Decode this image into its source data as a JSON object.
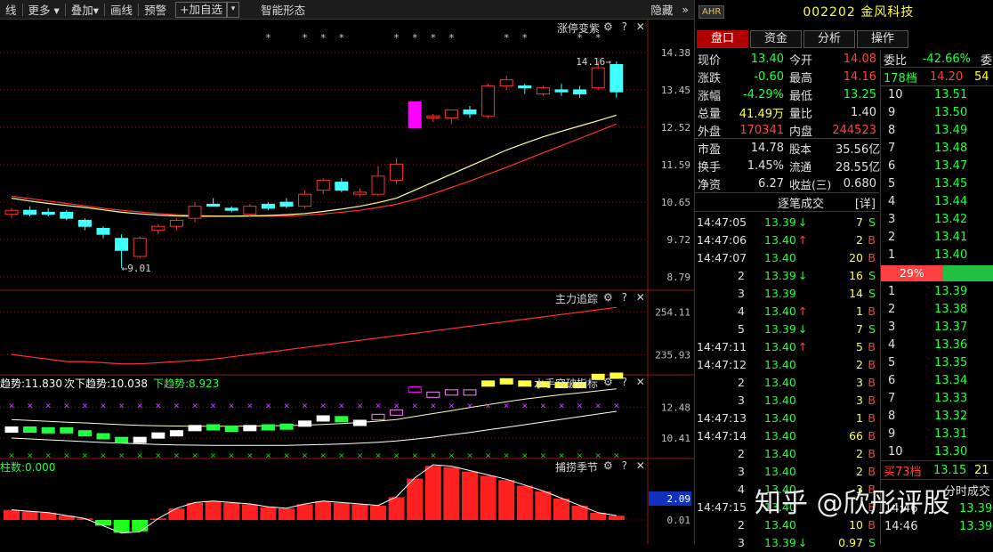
{
  "topbar": {
    "items": [
      "线",
      "更多 ▾",
      "叠加▾",
      "画线",
      "预警"
    ],
    "add_label": "+加自选",
    "add_dd": "▾",
    "smart": "智能形态",
    "hide": "隐藏",
    "collapse": "»"
  },
  "panels": {
    "p1": {
      "title": "涨停变紫",
      "ctrl": "⚙ ? ✕",
      "ticks": [
        "14.38",
        "13.45",
        "12.52",
        "11.59",
        "10.65",
        "9.72",
        "8.79"
      ],
      "max_label": "14.16",
      "min_label": "9.01"
    },
    "p2": {
      "title": "主力追踪",
      "ctrl": "⚙ ? ✕",
      "ticks": [
        "254.11",
        "235.93"
      ]
    },
    "p3": {
      "title": "水手突破指标",
      "ctrl": "⚙ ? ✕",
      "ticks": [
        "12.48",
        "10.41"
      ],
      "leg1": "趋势:11.830",
      "leg2": "次下趋势:10.038",
      "leg3": "下趋势:8.923"
    },
    "p4": {
      "title": "捕捞季节",
      "ctrl": "⚙ ? ✕",
      "ticks": [
        "2.09",
        "0.01"
      ],
      "leg1": "柱数:0.000"
    }
  },
  "colors": {
    "up": "#ff3030",
    "down": "#40ffff",
    "limit": "#ff00ff",
    "ma_yellow": "#ffffa0",
    "ma_red": "#ff3030"
  },
  "chart_data": {
    "type": "candlestick",
    "ohlc": [
      [
        10.35,
        10.5,
        10.25,
        10.45
      ],
      [
        10.45,
        10.55,
        10.3,
        10.35
      ],
      [
        10.4,
        10.5,
        10.3,
        10.35
      ],
      [
        10.4,
        10.45,
        10.2,
        10.25
      ],
      [
        10.2,
        10.25,
        9.95,
        10.05
      ],
      [
        10.0,
        10.05,
        9.75,
        9.85
      ],
      [
        9.75,
        9.85,
        9.01,
        9.45
      ],
      [
        9.3,
        9.8,
        9.25,
        9.75
      ],
      [
        9.95,
        10.1,
        9.85,
        10.05
      ],
      [
        10.05,
        10.25,
        9.95,
        10.2
      ],
      [
        10.25,
        10.65,
        10.15,
        10.55
      ],
      [
        10.6,
        10.75,
        10.55,
        10.55
      ],
      [
        10.5,
        10.55,
        10.4,
        10.45
      ],
      [
        10.35,
        10.6,
        10.3,
        10.55
      ],
      [
        10.6,
        10.65,
        10.45,
        10.5
      ],
      [
        10.65,
        10.75,
        10.5,
        10.55
      ],
      [
        10.55,
        10.95,
        10.5,
        10.85
      ],
      [
        10.95,
        11.25,
        10.85,
        11.2
      ],
      [
        11.15,
        11.25,
        10.9,
        10.95
      ],
      [
        10.85,
        11.0,
        10.8,
        10.9
      ],
      [
        10.85,
        11.55,
        10.8,
        11.3
      ],
      [
        11.2,
        11.75,
        11.1,
        11.6
      ],
      [
        12.5,
        13.15,
        12.5,
        13.15
      ],
      [
        12.75,
        12.85,
        12.65,
        12.8
      ],
      [
        12.75,
        12.95,
        12.6,
        12.95
      ],
      [
        12.95,
        13.05,
        12.75,
        12.85
      ],
      [
        12.8,
        13.6,
        12.75,
        13.55
      ],
      [
        13.55,
        13.8,
        13.45,
        13.7
      ],
      [
        13.55,
        13.6,
        13.35,
        13.5
      ],
      [
        13.35,
        13.55,
        13.3,
        13.5
      ],
      [
        13.45,
        13.6,
        13.3,
        13.4
      ],
      [
        13.45,
        13.55,
        13.25,
        13.35
      ],
      [
        13.5,
        14.16,
        13.45,
        14.0
      ],
      [
        14.08,
        14.16,
        13.25,
        13.4
      ]
    ],
    "ma_yellow": [
      10.75,
      10.68,
      10.62,
      10.57,
      10.52,
      10.46,
      10.4,
      10.36,
      10.33,
      10.31,
      10.3,
      10.3,
      10.3,
      10.31,
      10.32,
      10.34,
      10.37,
      10.42,
      10.48,
      10.55,
      10.64,
      10.75,
      10.95,
      11.15,
      11.35,
      11.55,
      11.75,
      11.95,
      12.12,
      12.28,
      12.42,
      12.55,
      12.68,
      12.82
    ],
    "ma_red": [
      10.8,
      10.74,
      10.68,
      10.62,
      10.56,
      10.5,
      10.45,
      10.41,
      10.37,
      10.34,
      10.32,
      10.31,
      10.3,
      10.3,
      10.3,
      10.31,
      10.33,
      10.36,
      10.4,
      10.45,
      10.52,
      10.6,
      10.72,
      10.86,
      11.02,
      11.18,
      11.35,
      11.52,
      11.7,
      11.88,
      12.06,
      12.24,
      12.42,
      12.6
    ],
    "stars": [
      14,
      16,
      17,
      18,
      21,
      22,
      23,
      24,
      27,
      28,
      31,
      32
    ],
    "limit_index": [
      22
    ],
    "zlzz": [
      236,
      235,
      234,
      233,
      233,
      232.5,
      232,
      232,
      232.5,
      233,
      233.5,
      234,
      235,
      236,
      237,
      238,
      239,
      240,
      241,
      242,
      243,
      244,
      245,
      246,
      247,
      248,
      249,
      250,
      251,
      252,
      253,
      254,
      255,
      256
    ],
    "season": [
      0.35,
      0.3,
      0.25,
      0.15,
      0.05,
      -0.2,
      -0.45,
      -0.4,
      0.05,
      0.4,
      0.6,
      0.65,
      0.6,
      0.55,
      0.45,
      0.4,
      0.55,
      0.65,
      0.6,
      0.55,
      0.5,
      0.8,
      1.45,
      1.9,
      1.85,
      1.7,
      1.55,
      1.4,
      1.2,
      1.0,
      0.75,
      0.5,
      0.25,
      0.15
    ]
  },
  "rp": {
    "tag": "AHR",
    "code": "002202 金风科技",
    "tabs": [
      "盘口",
      "资金",
      "分析",
      "操作"
    ],
    "quote": [
      [
        "现价",
        "13.40",
        "今开",
        "14.08"
      ],
      [
        "涨跌",
        "-0.60",
        "最高",
        "14.16"
      ],
      [
        "涨幅",
        "-4.29%",
        "最低",
        "13.25"
      ],
      [
        "总量",
        "41.49万",
        "量比",
        "1.40"
      ],
      [
        "外盘",
        "170341",
        "内盘",
        "244523"
      ]
    ],
    "fund": [
      [
        "市盈",
        "14.78",
        "股本",
        "35.56亿"
      ],
      [
        "换手",
        "1.45%",
        "流通",
        "28.55亿"
      ],
      [
        "净资",
        "6.27",
        "收益(三)",
        "0.680"
      ]
    ],
    "ticks_title": "逐笔成交",
    "ticks_detail": "[详]",
    "ticks": [
      [
        "14:47:05",
        "13.39",
        "↓",
        "7",
        "S"
      ],
      [
        "14:47:06",
        "13.40",
        "↑",
        "2",
        "B"
      ],
      [
        "14:47:07",
        "13.40",
        "",
        "20",
        "B"
      ],
      [
        "2",
        "13.39",
        "↓",
        "16",
        "S"
      ],
      [
        "3",
        "13.39",
        "",
        "14",
        "S"
      ],
      [
        "4",
        "13.40",
        "↑",
        "1",
        "B"
      ],
      [
        "5",
        "13.39",
        "↓",
        "7",
        "S"
      ],
      [
        "14:47:11",
        "13.40",
        "↑",
        "5",
        "B"
      ],
      [
        "14:47:12",
        "13.40",
        "",
        "2",
        "B"
      ],
      [
        "2",
        "13.40",
        "",
        "3",
        "B"
      ],
      [
        "3",
        "13.40",
        "",
        "3",
        "B"
      ],
      [
        "14:47:13",
        "13.40",
        "",
        "1",
        "B"
      ],
      [
        "14:47:14",
        "13.40",
        "",
        "66",
        "B"
      ],
      [
        "2",
        "13.40",
        "",
        "2",
        "B"
      ],
      [
        "3",
        "13.40",
        "",
        "2",
        "B"
      ],
      [
        "4",
        "13.40",
        "",
        "3",
        "B"
      ],
      [
        "14:47:15",
        "13.40",
        "",
        "",
        "B"
      ],
      [
        "2",
        "13.40",
        "",
        "10",
        "B"
      ],
      [
        "3",
        "13.39",
        "↓",
        "0.97",
        "S"
      ]
    ],
    "weibi_label": "委比",
    "weibi_val": "-42.66%",
    "weibi_more": "委",
    "sell_head": [
      "178档",
      "14.20",
      "54"
    ],
    "sells": [
      [
        "10",
        "13.51"
      ],
      [
        "9",
        "13.50"
      ],
      [
        "8",
        "13.49"
      ],
      [
        "7",
        "13.48"
      ],
      [
        "6",
        "13.47"
      ],
      [
        "5",
        "13.45"
      ],
      [
        "4",
        "13.44"
      ],
      [
        "3",
        "13.42"
      ],
      [
        "2",
        "13.41"
      ],
      [
        "1",
        "13.40"
      ]
    ],
    "pct": "29%",
    "buys": [
      [
        "1",
        "13.39"
      ],
      [
        "2",
        "13.38"
      ],
      [
        "3",
        "13.37"
      ],
      [
        "4",
        "13.36"
      ],
      [
        "5",
        "13.35"
      ],
      [
        "6",
        "13.34"
      ],
      [
        "7",
        "13.33"
      ],
      [
        "8",
        "13.32"
      ],
      [
        "9",
        "13.31"
      ],
      [
        "10",
        "13.30"
      ]
    ],
    "buy_foot": [
      "买73档",
      "13.15",
      "21"
    ],
    "sub_title": "分时成交",
    "sub_rows": [
      [
        "14:46",
        "13.39"
      ],
      [
        "14:46",
        "13.39"
      ]
    ]
  },
  "watermark": "知乎 @欣彤评股"
}
